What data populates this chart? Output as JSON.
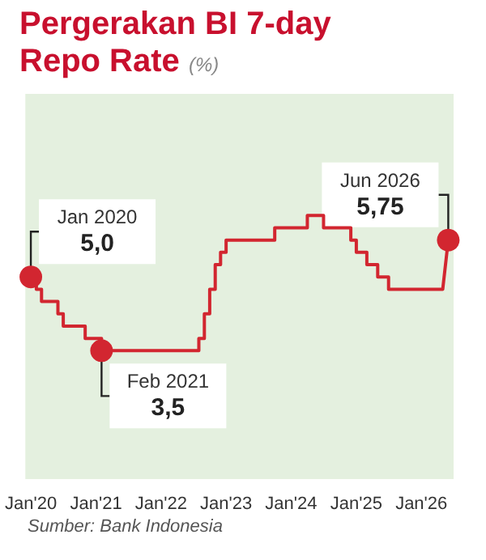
{
  "chart_data": {
    "type": "line",
    "title": "Pergerakan BI 7-day Repo Rate",
    "subtitle": "(%)",
    "x": [
      "2020-01",
      "2020-02",
      "2020-02",
      "2020-03",
      "2020-03",
      "2020-06",
      "2020-06",
      "2020-07",
      "2020-07",
      "2020-11",
      "2020-11",
      "2021-02",
      "2021-02",
      "2022-07",
      "2022-08",
      "2022-08",
      "2022-09",
      "2022-09",
      "2022-10",
      "2022-10",
      "2022-11",
      "2022-11",
      "2022-12",
      "2022-12",
      "2023-01",
      "2023-01",
      "2023-10",
      "2023-10",
      "2024-04",
      "2024-04",
      "2024-07",
      "2024-07",
      "2024-12",
      "2024-12",
      "2025-01",
      "2025-01",
      "2025-03",
      "2025-03",
      "2025-05",
      "2025-05",
      "2025-07",
      "2025-07",
      "2026-05",
      "2026-06"
    ],
    "series": [
      {
        "color": "#d22630",
        "values": [
          5.0,
          5.0,
          4.75,
          4.75,
          4.5,
          4.5,
          4.25,
          4.25,
          4.0,
          4.0,
          3.75,
          3.75,
          3.5,
          3.5,
          3.5,
          3.75,
          3.75,
          4.25,
          4.25,
          4.75,
          4.75,
          5.25,
          5.25,
          5.5,
          5.5,
          5.75,
          5.75,
          6.0,
          6.0,
          6.25,
          6.25,
          6.0,
          6.0,
          5.75,
          5.75,
          5.5,
          5.5,
          5.25,
          5.25,
          5.0,
          5.0,
          4.75,
          4.75,
          5.75
        ],
        "value_labels": [
          "5,0",
          null,
          null,
          null,
          null,
          null,
          null,
          null,
          null,
          null,
          null,
          null,
          "3,5",
          null,
          null,
          null,
          null,
          null,
          null,
          null,
          null,
          null,
          null,
          null,
          null,
          null,
          null,
          null,
          null,
          null,
          null,
          null,
          null,
          null,
          null,
          null,
          null,
          null,
          null,
          null,
          null,
          null,
          null,
          "5,75"
        ]
      }
    ],
    "annotations": [
      {
        "text": "Jan 2020",
        "x": "2020-01",
        "y": 5.0
      },
      {
        "text": "Feb 2021",
        "x": "2021-02",
        "y": 3.5
      },
      {
        "text": "Jun 2026",
        "x": "2026-06",
        "y": 5.75
      },
      "Sumber: Bank Indonesia"
    ],
    "xlim": [
      "2019-12",
      "2026-07"
    ],
    "xticks": [
      {
        "value": "2020-01",
        "label": "Jan'20"
      },
      {
        "value": "2021-01",
        "label": "Jan'21"
      },
      {
        "value": "2022-01",
        "label": "Jan'22"
      },
      {
        "value": "2023-01",
        "label": "Jan'23"
      },
      {
        "value": "2024-01",
        "label": "Jan'24"
      },
      {
        "value": "2025-01",
        "label": "Jan'25"
      },
      {
        "value": "2026-01",
        "label": "Jan'26"
      }
    ],
    "tick_labels": "x",
    "grid": false,
    "line_style": "solid"
  }
}
